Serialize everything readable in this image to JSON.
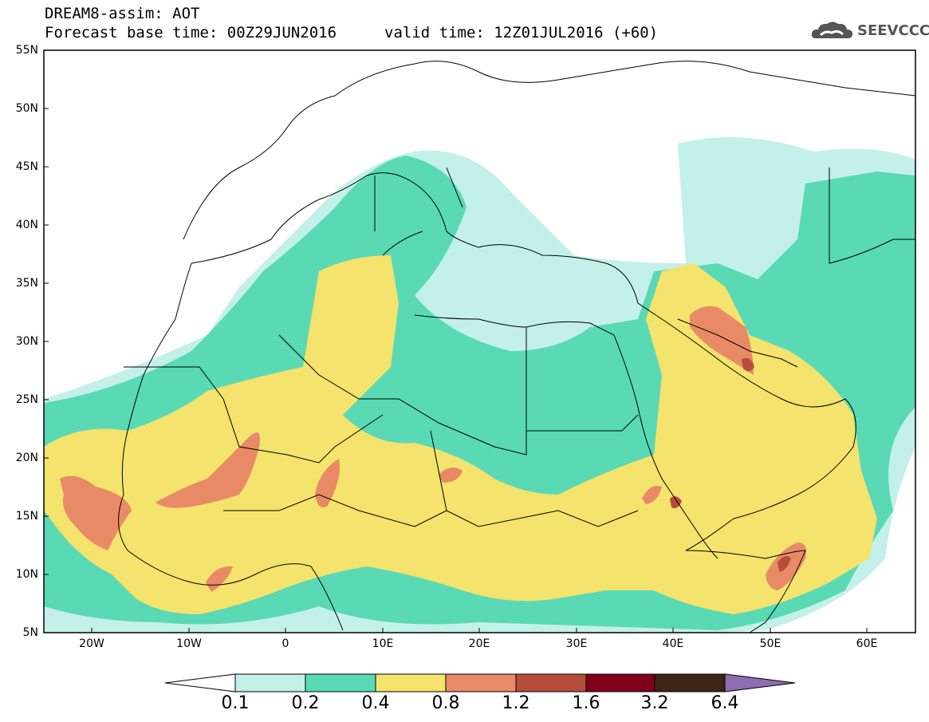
{
  "header": {
    "title_line1": "DREAM8-assim: AOT",
    "base_time": "Forecast base time: 00Z29JUN2016",
    "valid_time": "valid time: 12Z01JUL2016 (+60)",
    "logo_text": "SEEVCCC",
    "logo_icon": "cloud-icon"
  },
  "map": {
    "lon_range": [
      -25,
      65
    ],
    "lat_range": [
      5,
      55
    ],
    "lat_ticks": [
      "55N",
      "50N",
      "45N",
      "40N",
      "35N",
      "30N",
      "25N",
      "20N",
      "15N",
      "10N",
      "5N"
    ],
    "lon_ticks": [
      "20W",
      "10W",
      "0",
      "10E",
      "20E",
      "30E",
      "40E",
      "50E",
      "60E"
    ],
    "background": "#ffffff",
    "border_color": "#000000"
  },
  "legend": {
    "colors": [
      "#ffffff",
      "#c4f0ea",
      "#5ad9b5",
      "#f4e36c",
      "#e98a66",
      "#b54d3a",
      "#800019",
      "#3e2514",
      "#8d6db0"
    ],
    "labels": [
      "0.1",
      "0.2",
      "0.4",
      "0.8",
      "1.2",
      "1.6",
      "3.2",
      "6.4"
    ]
  }
}
